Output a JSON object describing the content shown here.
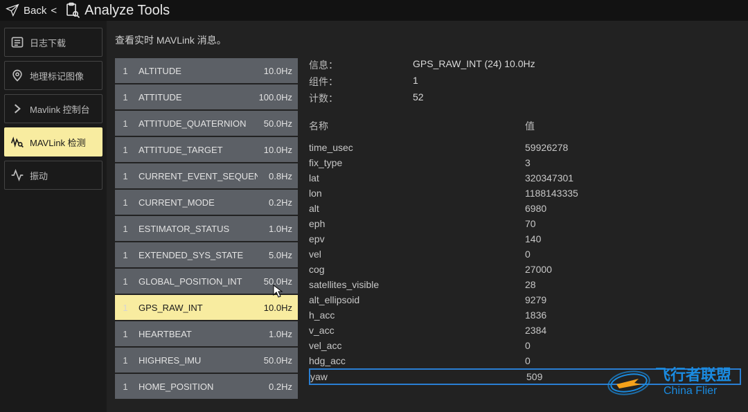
{
  "colors": {
    "bg_page": "#222222",
    "bg_dark": "#1a1a1a",
    "row_bg": "#5c6066",
    "row_selected": "#f8eca0",
    "highlight_border": "#2a7fd4",
    "text": "#d0d0d0",
    "logo_blue": "#1a8be0",
    "logo_orange": "#f5a11a"
  },
  "topbar": {
    "back_label": "Back",
    "back_chevron": "<",
    "title": "Analyze Tools"
  },
  "sidebar": {
    "items": [
      {
        "id": "log-download",
        "label": "日志下载",
        "active": false
      },
      {
        "id": "geotag",
        "label": "地理标记图像",
        "active": false
      },
      {
        "id": "mavlink-console",
        "label": "Mavlink 控制台",
        "active": false
      },
      {
        "id": "mavlink-inspect",
        "label": "MAVLink 检测",
        "active": true
      },
      {
        "id": "vibration",
        "label": "振动",
        "active": false
      }
    ]
  },
  "main": {
    "subtitle": "查看实时 MAVLink 消息。",
    "messages": [
      {
        "comp": "1",
        "name": "ALTITUDE",
        "hz": "10.0Hz",
        "selected": false
      },
      {
        "comp": "1",
        "name": "ATTITUDE",
        "hz": "100.0Hz",
        "selected": false
      },
      {
        "comp": "1",
        "name": "ATTITUDE_QUATERNION",
        "hz": "50.0Hz",
        "selected": false
      },
      {
        "comp": "1",
        "name": "ATTITUDE_TARGET",
        "hz": "10.0Hz",
        "selected": false
      },
      {
        "comp": "1",
        "name": "CURRENT_EVENT_SEQUENCE",
        "hz": "0.8Hz",
        "selected": false
      },
      {
        "comp": "1",
        "name": "CURRENT_MODE",
        "hz": "0.2Hz",
        "selected": false
      },
      {
        "comp": "1",
        "name": "ESTIMATOR_STATUS",
        "hz": "1.0Hz",
        "selected": false
      },
      {
        "comp": "1",
        "name": "EXTENDED_SYS_STATE",
        "hz": "5.0Hz",
        "selected": false
      },
      {
        "comp": "1",
        "name": "GLOBAL_POSITION_INT",
        "hz": "50.0Hz",
        "selected": false
      },
      {
        "comp": "1",
        "name": "GPS_RAW_INT",
        "hz": "10.0Hz",
        "selected": true
      },
      {
        "comp": "1",
        "name": "HEARTBEAT",
        "hz": "1.0Hz",
        "selected": false
      },
      {
        "comp": "1",
        "name": "HIGHRES_IMU",
        "hz": "50.0Hz",
        "selected": false
      },
      {
        "comp": "1",
        "name": "HOME_POSITION",
        "hz": "0.2Hz",
        "selected": false
      }
    ],
    "detail": {
      "info_label": "信息：",
      "info_value": "GPS_RAW_INT (24) 10.0Hz",
      "comp_label": "组件：",
      "comp_value": "1",
      "count_label": "计数：",
      "count_value": "52",
      "name_header": "名称",
      "value_header": "值",
      "fields": [
        {
          "name": "time_usec",
          "value": "59926278",
          "highlight": false
        },
        {
          "name": "fix_type",
          "value": "3",
          "highlight": false
        },
        {
          "name": "lat",
          "value": "320347301",
          "highlight": false
        },
        {
          "name": "lon",
          "value": "1188143335",
          "highlight": false
        },
        {
          "name": "alt",
          "value": "6980",
          "highlight": false
        },
        {
          "name": "eph",
          "value": "70",
          "highlight": false
        },
        {
          "name": "epv",
          "value": "140",
          "highlight": false
        },
        {
          "name": "vel",
          "value": "0",
          "highlight": false
        },
        {
          "name": "cog",
          "value": "27000",
          "highlight": false
        },
        {
          "name": "satellites_visible",
          "value": "28",
          "highlight": false
        },
        {
          "name": "alt_ellipsoid",
          "value": "9279",
          "highlight": false
        },
        {
          "name": "h_acc",
          "value": "1836",
          "highlight": false
        },
        {
          "name": "v_acc",
          "value": "2384",
          "highlight": false
        },
        {
          "name": "vel_acc",
          "value": "0",
          "highlight": false
        },
        {
          "name": "hdg_acc",
          "value": "0",
          "highlight": false
        },
        {
          "name": "yaw",
          "value": "509",
          "highlight": true
        }
      ]
    }
  },
  "logo": {
    "line1": "飞行者联盟",
    "line2": "China Flier"
  }
}
